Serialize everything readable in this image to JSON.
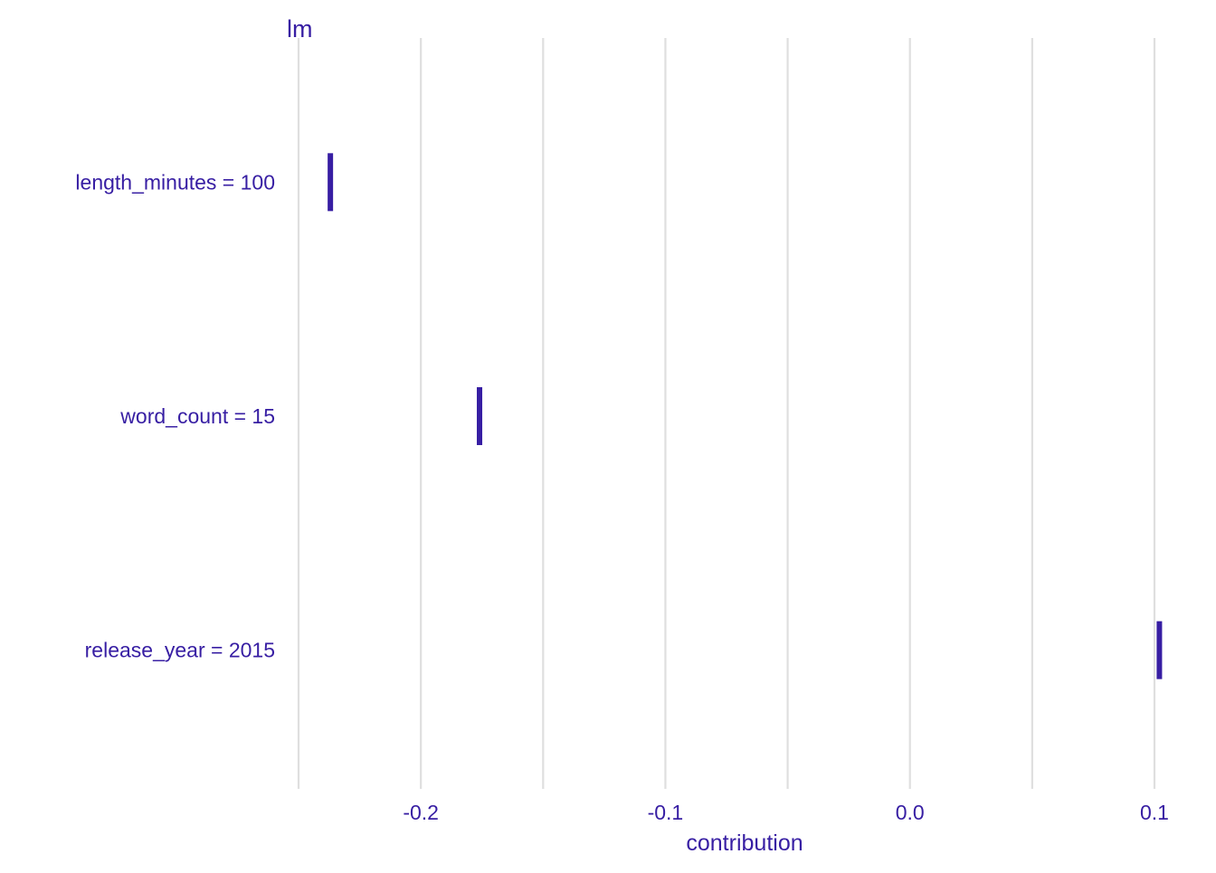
{
  "chart_data": {
    "type": "bar",
    "title": "lm",
    "xlabel": "contribution",
    "ylabel": "",
    "categories": [
      "length_minutes = 100",
      "word_count = 15",
      "release_year = 2015"
    ],
    "values": [
      -0.237,
      -0.176,
      0.102
    ],
    "xlim": [
      -0.25,
      0.1
    ],
    "x_ticks": [
      -0.2,
      -0.1,
      0.0,
      0.1
    ],
    "x_tick_labels": [
      "-0.2",
      "-0.1",
      "0.0",
      "0.1"
    ],
    "x_gridlines": [
      -0.25,
      -0.2,
      -0.15,
      -0.1,
      -0.05,
      0.0,
      0.05,
      0.1
    ],
    "grid": true,
    "legend": "none",
    "colors": {
      "text": "#371ea3",
      "bar": "#371ea3",
      "grid": "#dfdfdf"
    }
  }
}
